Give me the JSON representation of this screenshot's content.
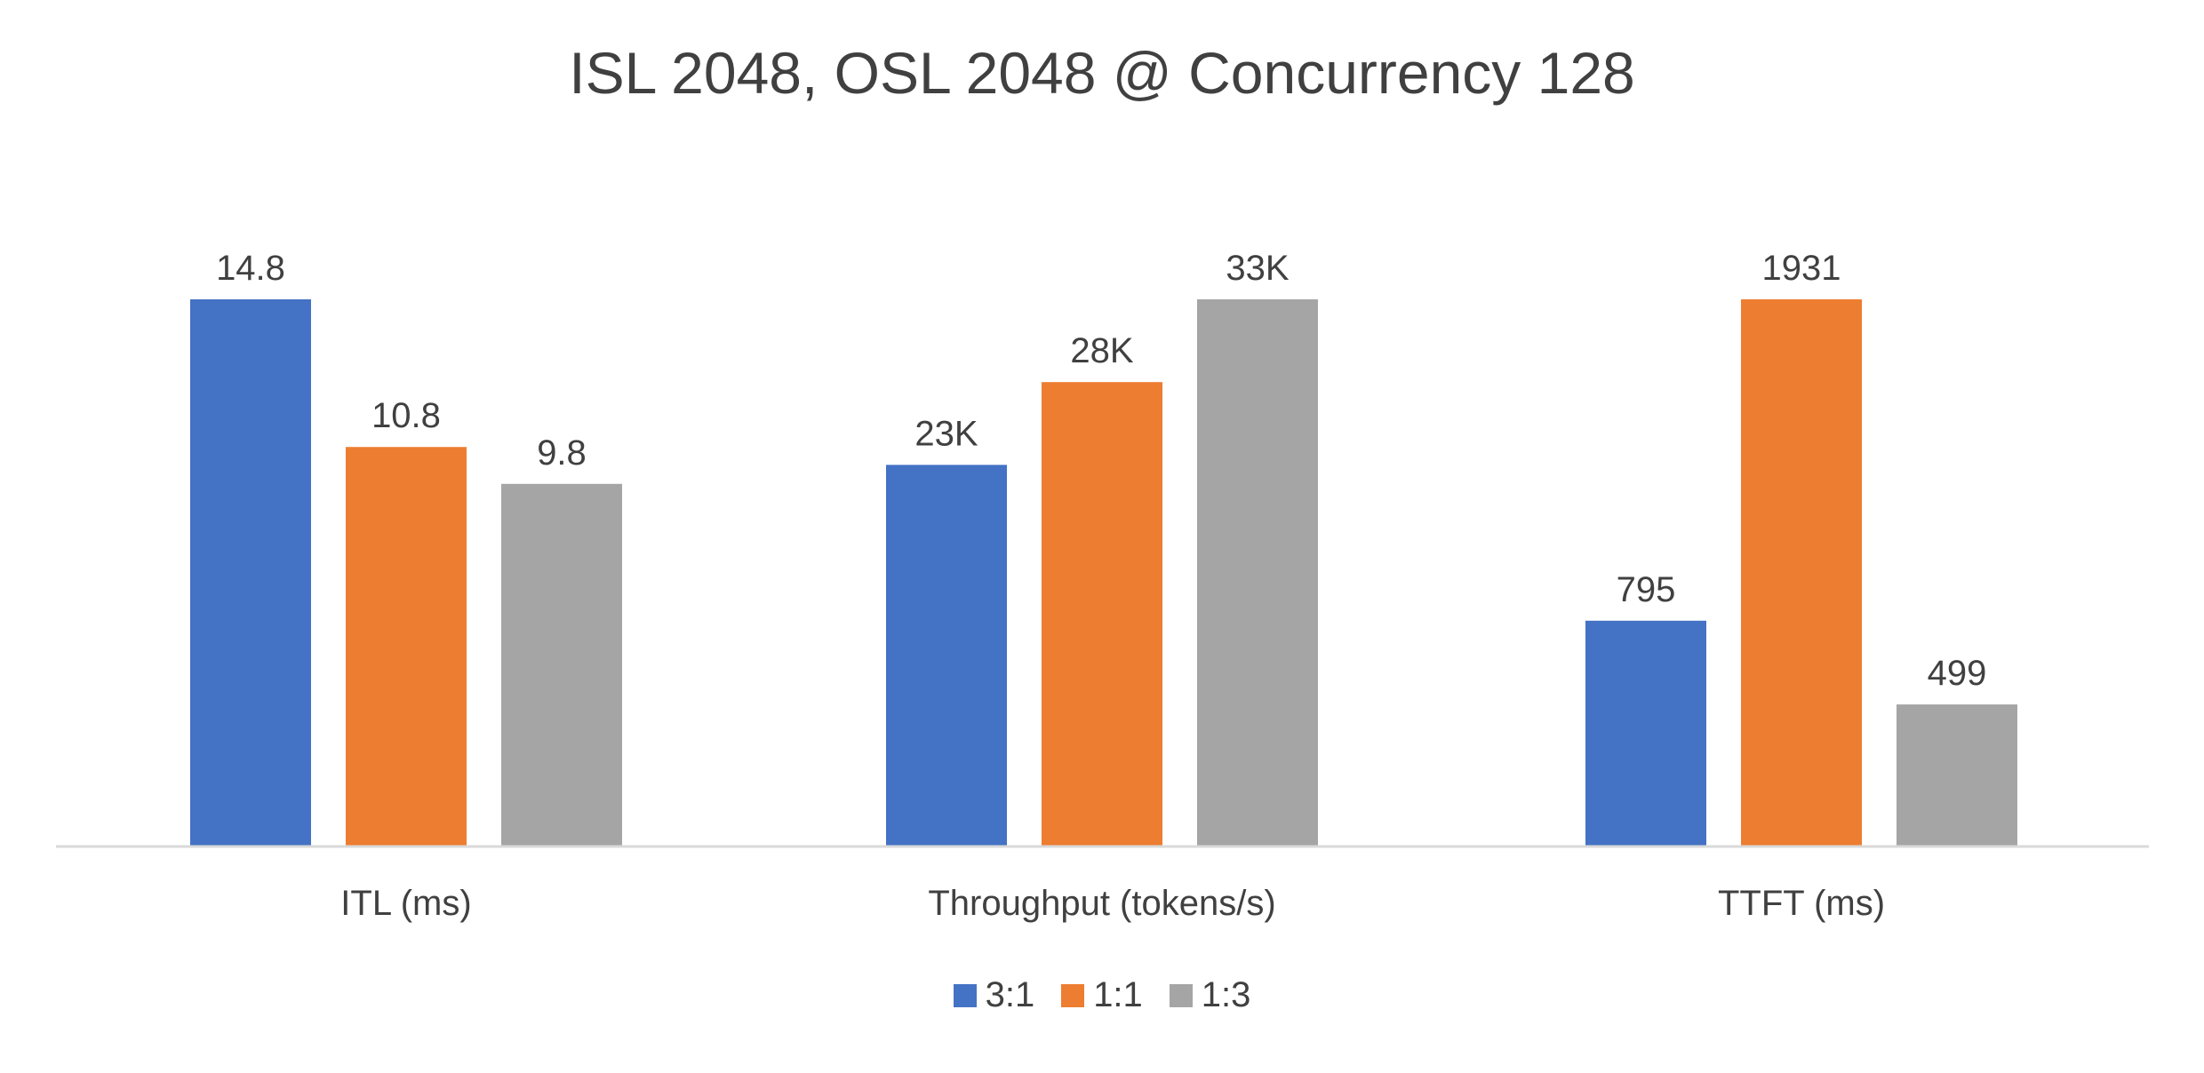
{
  "chart_data": {
    "type": "bar",
    "title": "ISL 2048, OSL 2048 @ Concurrency 128",
    "categories": [
      "ITL (ms)",
      "Throughput (tokens/s)",
      "TTFT (ms)"
    ],
    "series": [
      {
        "name": "3:1",
        "color": "#4472C4",
        "values": [
          14.8,
          23,
          795
        ],
        "labels": [
          "14.8",
          "23K",
          "795"
        ]
      },
      {
        "name": "1:1",
        "color": "#ED7D31",
        "values": [
          10.8,
          28,
          1931
        ],
        "labels": [
          "10.8",
          "28K",
          "1931"
        ]
      },
      {
        "name": "1:3",
        "color": "#A5A5A5",
        "values": [
          9.8,
          33,
          499
        ],
        "labels": [
          "9.8",
          "33K",
          "499"
        ]
      }
    ],
    "scaling": "per-category",
    "grid": false,
    "legend_position": "bottom",
    "axis_color": "#D9D9D9",
    "text_color": "#404040"
  }
}
